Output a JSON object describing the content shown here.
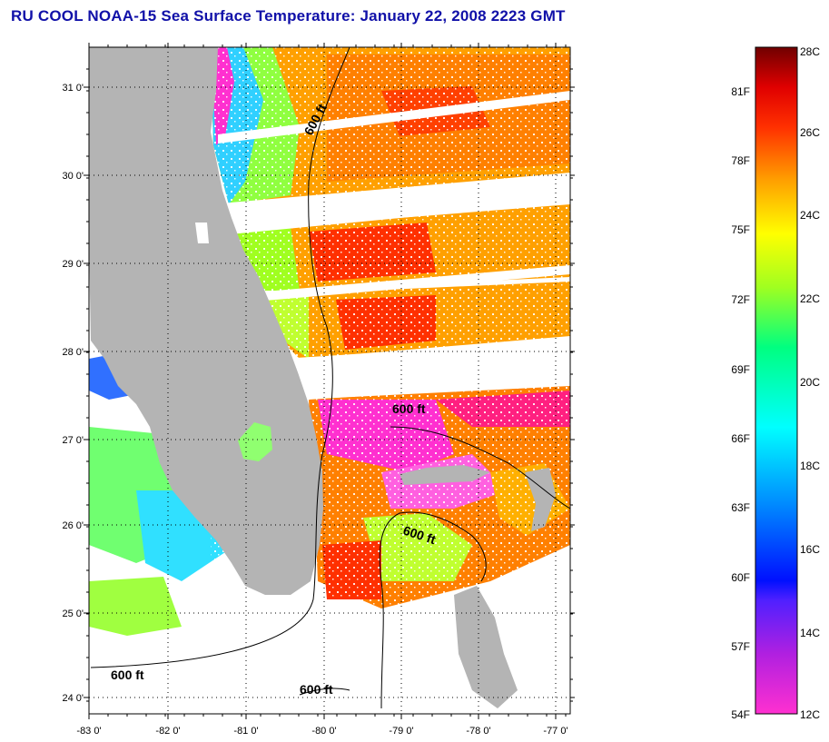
{
  "title": "RU COOL  NOAA-15  Sea Surface Temperature:  January 22, 2008 2223 GMT",
  "map": {
    "lat_labels": [
      "31 0'",
      "30 0'",
      "29 0'",
      "28 0'",
      "27 0'",
      "26 0'",
      "25 0'",
      "24 0'"
    ],
    "lon_labels": [
      "-83 0'",
      "-82 0'",
      "-81 0'",
      "-80 0'",
      "-79 0'",
      "-78 0'",
      "-77 0'"
    ],
    "lat_range": [
      23.85,
      31.45
    ],
    "lon_range": [
      -83.0,
      -76.85
    ],
    "contour_labels": [
      "600 ft",
      "600 ft",
      "600 ft",
      "600 ft",
      "600 ft"
    ],
    "land_color": "#b4b4b4"
  },
  "colorbar": {
    "fahrenheit_labels": [
      "81F",
      "78F",
      "75F",
      "72F",
      "69F",
      "66F",
      "63F",
      "60F",
      "57F",
      "54F"
    ],
    "celsius_labels": [
      "28C",
      "26C",
      "24C",
      "22C",
      "20C",
      "18C",
      "16C",
      "14C",
      "12C"
    ],
    "stops": [
      "#ff30d0",
      "#a020e0",
      "#1020ff",
      "#0090ff",
      "#00ffff",
      "#00ff80",
      "#a0ff20",
      "#ffff00",
      "#ffa000",
      "#ff4000",
      "#e00000",
      "#7a0000"
    ]
  }
}
